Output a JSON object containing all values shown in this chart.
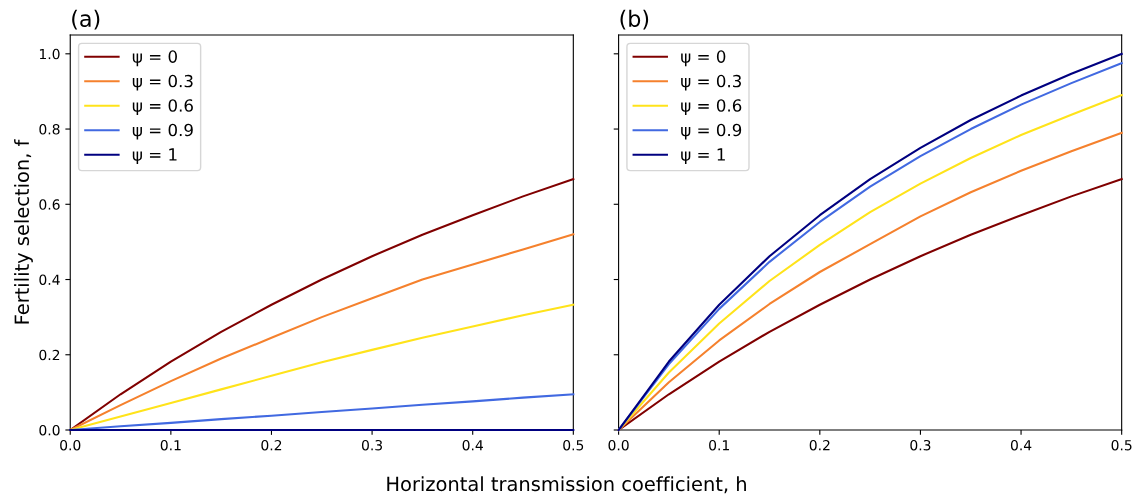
{
  "chart_data": [
    {
      "type": "line",
      "title": "(a)",
      "ylabel": "Fertility selection, f",
      "xlabel": "Horizontal transmission coefficient, h",
      "x": [
        0,
        0.05,
        0.1,
        0.15,
        0.2,
        0.25,
        0.3,
        0.35,
        0.4,
        0.45,
        0.5
      ],
      "xlim": [
        0,
        0.5
      ],
      "xticks": [
        {
          "value": 0,
          "label": "0.0"
        },
        0.1,
        0.2,
        0.3,
        0.4,
        0.5
      ],
      "ylim": [
        0,
        1.05
      ],
      "yticks": [
        {
          "value": 0,
          "label": "0.0"
        },
        0.2,
        0.4,
        0.6,
        0.8,
        {
          "value": 1,
          "label": "1.0"
        }
      ],
      "legend": "top left",
      "grid": false,
      "series": [
        {
          "name": "ψ = 0",
          "color": "#800000",
          "values": [
            0,
            0.095,
            0.182,
            0.261,
            0.333,
            0.4,
            0.462,
            0.519,
            0.571,
            0.621,
            0.667
          ]
        },
        {
          "name": "ψ = 0.3",
          "color": "#f5812d",
          "values": [
            0,
            0.066,
            0.13,
            0.19,
            0.245,
            0.3,
            0.35,
            0.4,
            0.44,
            0.48,
            0.52
          ]
        },
        {
          "name": "ψ = 0.6",
          "color": "#ffe31a",
          "values": [
            0,
            0.036,
            0.072,
            0.108,
            0.144,
            0.18,
            0.213,
            0.245,
            0.275,
            0.305,
            0.333
          ]
        },
        {
          "name": "ψ = 0.9",
          "color": "#4169e1",
          "values": [
            0,
            0.01,
            0.019,
            0.029,
            0.038,
            0.048,
            0.057,
            0.067,
            0.076,
            0.086,
            0.095
          ]
        },
        {
          "name": "ψ = 1",
          "color": "#000080",
          "values": [
            0,
            0,
            0,
            0,
            0,
            0,
            0,
            0,
            0,
            0,
            0
          ]
        }
      ]
    },
    {
      "type": "line",
      "title": "(b)",
      "x": [
        0,
        0.05,
        0.1,
        0.15,
        0.2,
        0.25,
        0.3,
        0.35,
        0.4,
        0.45,
        0.5
      ],
      "xlim": [
        0,
        0.5
      ],
      "xticks": [
        {
          "value": 0,
          "label": "0.0"
        },
        0.1,
        0.2,
        0.3,
        0.4,
        0.5
      ],
      "ylim": [
        0,
        1.05
      ],
      "yticks": [
        0,
        0.2,
        0.4,
        0.6,
        0.8,
        1
      ],
      "tick_labels": "x",
      "legend": "top left",
      "grid": false,
      "series": [
        {
          "name": "ψ = 0",
          "color": "#800000",
          "values": [
            0,
            0.095,
            0.182,
            0.261,
            0.333,
            0.4,
            0.462,
            0.519,
            0.571,
            0.621,
            0.667
          ]
        },
        {
          "name": "ψ = 0.3",
          "color": "#f5812d",
          "values": [
            0,
            0.127,
            0.238,
            0.335,
            0.42,
            0.494,
            0.568,
            0.632,
            0.689,
            0.741,
            0.79
          ]
        },
        {
          "name": "ψ = 0.6",
          "color": "#ffe31a",
          "values": [
            0,
            0.153,
            0.283,
            0.396,
            0.492,
            0.579,
            0.655,
            0.723,
            0.784,
            0.838,
            0.89
          ]
        },
        {
          "name": "ψ = 0.9",
          "color": "#4169e1",
          "values": [
            0,
            0.175,
            0.322,
            0.447,
            0.553,
            0.647,
            0.728,
            0.8,
            0.865,
            0.922,
            0.975
          ]
        },
        {
          "name": "ψ = 1",
          "color": "#000080",
          "values": [
            0,
            0.182,
            0.333,
            0.462,
            0.571,
            0.667,
            0.75,
            0.824,
            0.889,
            0.947,
            1.0
          ]
        }
      ]
    }
  ]
}
